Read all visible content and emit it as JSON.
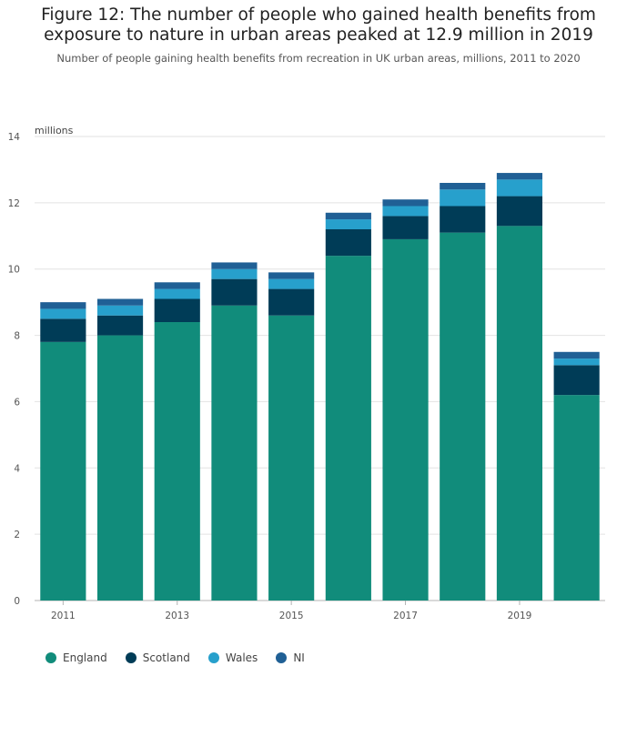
{
  "title": "Figure 12: The number of people who gained health benefits from exposure to nature in urban areas peaked at 12.9 million in 2019",
  "subtitle": "Number of people gaining health benefits from recreation in UK urban areas, millions, 2011 to 2020",
  "chart_data": {
    "type": "bar",
    "stacked": true,
    "title": "Figure 12: The number of people who gained health benefits from exposure to nature in urban areas peaked at 12.9 million in 2019",
    "subtitle": "Number of people gaining health benefits from recreation in UK urban areas, millions, 2011 to 2020",
    "ylabel": "millions",
    "xlabel": "",
    "ylim": [
      0,
      14
    ],
    "yticks": [
      0,
      2,
      4,
      6,
      8,
      10,
      12,
      14
    ],
    "categories": [
      "2011",
      "2012",
      "2013",
      "2014",
      "2015",
      "2016",
      "2017",
      "2018",
      "2019",
      "2020"
    ],
    "xtick_labels": [
      "2011",
      "",
      "2013",
      "",
      "2015",
      "",
      "2017",
      "",
      "2019",
      ""
    ],
    "grid": true,
    "legend_position": "bottom",
    "series": [
      {
        "name": "England",
        "color": "#118c7b",
        "values": [
          7.8,
          8.0,
          8.4,
          8.9,
          8.6,
          10.4,
          10.9,
          11.1,
          11.3,
          6.2
        ]
      },
      {
        "name": "Scotland",
        "color": "#003c57",
        "values": [
          0.7,
          0.6,
          0.7,
          0.8,
          0.8,
          0.8,
          0.7,
          0.8,
          0.9,
          0.9
        ]
      },
      {
        "name": "Wales",
        "color": "#27a0cc",
        "values": [
          0.3,
          0.3,
          0.3,
          0.3,
          0.3,
          0.3,
          0.3,
          0.5,
          0.5,
          0.2
        ]
      },
      {
        "name": "NI",
        "color": "#206095",
        "values": [
          0.2,
          0.2,
          0.2,
          0.2,
          0.2,
          0.2,
          0.2,
          0.2,
          0.2,
          0.2
        ]
      }
    ]
  }
}
